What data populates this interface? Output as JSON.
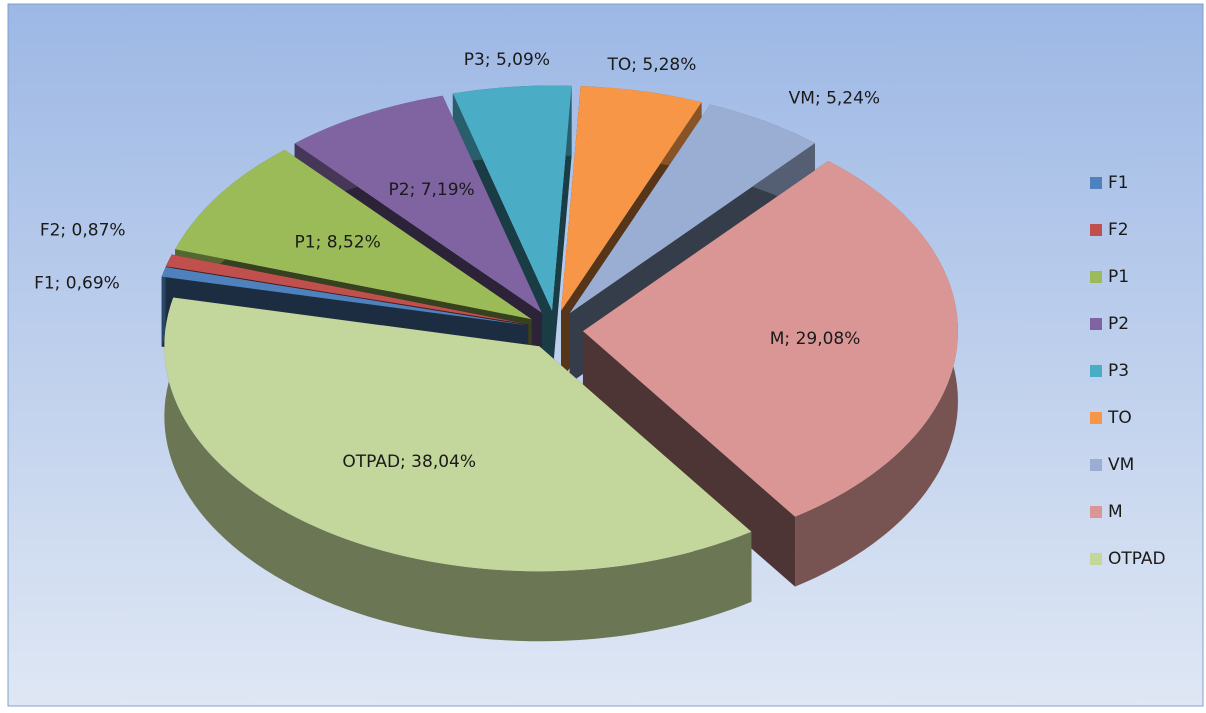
{
  "chart_data": {
    "type": "pie",
    "categories": [
      "F1",
      "F2",
      "P1",
      "P2",
      "P3",
      "TO",
      "VM",
      "M",
      "OTPAD"
    ],
    "values": [
      0.69,
      0.87,
      8.52,
      7.19,
      5.09,
      5.28,
      5.24,
      29.08,
      38.04
    ],
    "value_labels": [
      "F1; 0,69%",
      "F2; 0,87%",
      "P1; 8,52%",
      "P2; 7,19%",
      "P3; 5,09%",
      "TO; 5,28%",
      "VM; 5,24%",
      "M; 29,08%",
      "OTPAD; 38,04%"
    ],
    "colors": [
      "#4f81bd",
      "#c0504d",
      "#9bbb59",
      "#8064a2",
      "#4bacc6",
      "#f79646",
      "#9aadd2",
      "#d99694",
      "#c3d69b"
    ],
    "legend": "right"
  }
}
